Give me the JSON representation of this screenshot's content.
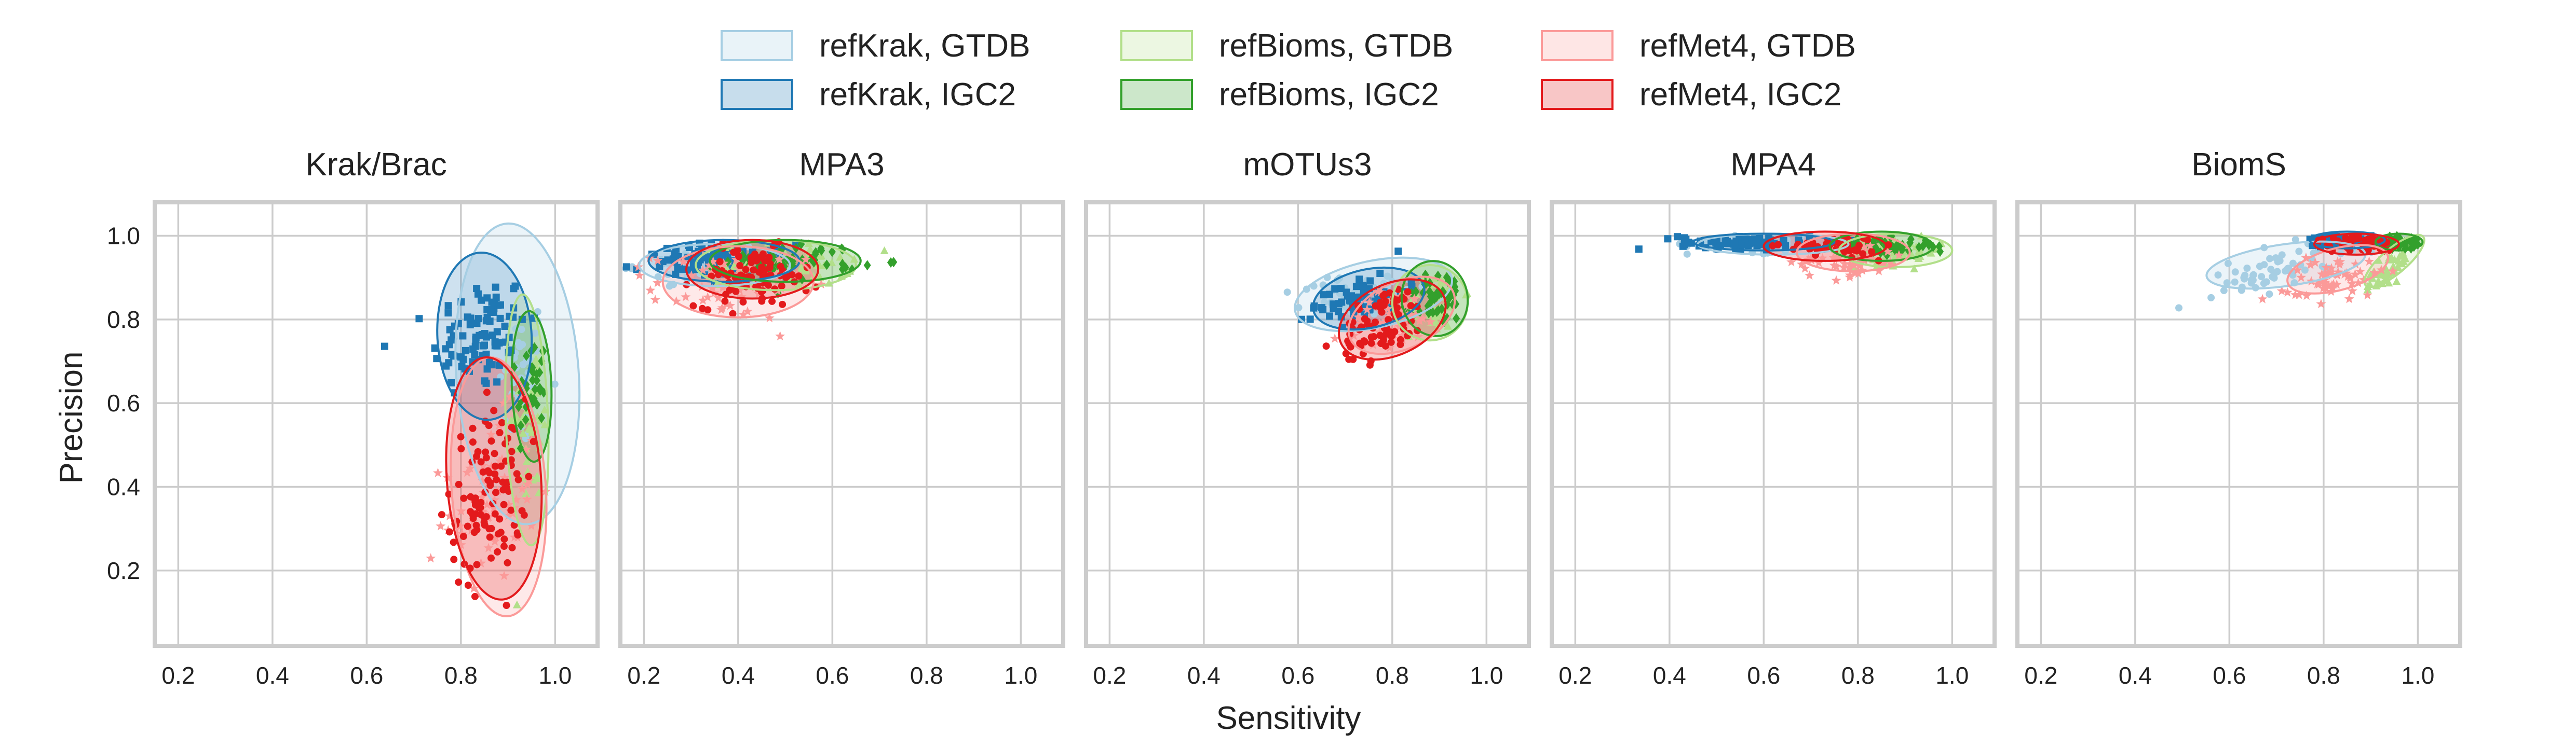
{
  "figure": {
    "xlabel": "Sensitivity",
    "ylabel": "Precision"
  },
  "legend": {
    "placement": "top-center",
    "entries": [
      {
        "label": "refKrak, GTDB",
        "color": "#a6cee3"
      },
      {
        "label": "refKrak, IGC2",
        "color": "#1f78b4"
      },
      {
        "label": "refBioms, GTDB",
        "color": "#b2df8a"
      },
      {
        "label": "refBioms, IGC2",
        "color": "#33a02c"
      },
      {
        "label": "refMet4, GTDB",
        "color": "#fb9a99"
      },
      {
        "label": "refMet4, IGC2",
        "color": "#e31a1c"
      }
    ]
  },
  "colors": {
    "refKrak_GTDB": "#a6cee3",
    "refKrak_IGC2": "#1f78b4",
    "refBioms_GTDB": "#b2df8a",
    "refBioms_IGC2": "#33a02c",
    "refMet4_GTDB": "#fb9a99",
    "refMet4_IGC2": "#e31a1c",
    "grid": "#cccccc",
    "frame": "#cccccc"
  },
  "chart_data": [
    {
      "type": "scatter",
      "title": "Krak/Brac",
      "xlim": [
        0.15,
        1.09
      ],
      "ylim": [
        0.02,
        1.08
      ],
      "xticks": [
        "0.2",
        "0.4",
        "0.6",
        "0.8",
        "1.0"
      ],
      "yticks": [
        "0.2",
        "0.4",
        "0.6",
        "0.8",
        "1.0"
      ],
      "grid": true,
      "series": [
        {
          "name": "refKrak, GTDB",
          "marker": "circle",
          "cloud": {
            "cx": 0.93,
            "cy": 0.66,
            "sx": 0.025,
            "sy": 0.09,
            "rho": 0.2,
            "n": 40
          },
          "ellipse": {
            "cx": 0.92,
            "cy": 0.67,
            "rx": 0.13,
            "ry": 0.36,
            "angle": -4
          }
        },
        {
          "name": "refKrak, IGC2",
          "marker": "square",
          "cloud": {
            "cx": 0.84,
            "cy": 0.76,
            "sx": 0.05,
            "sy": 0.07,
            "rho": 0.2,
            "n": 90
          },
          "ellipse": {
            "cx": 0.85,
            "cy": 0.76,
            "rx": 0.1,
            "ry": 0.2,
            "angle": -3
          }
        },
        {
          "name": "refBioms, GTDB",
          "marker": "triangle",
          "cloud": {
            "cx": 0.95,
            "cy": 0.55,
            "sx": 0.02,
            "sy": 0.1,
            "rho": 0.1,
            "n": 50
          },
          "ellipse": {
            "cx": 0.94,
            "cy": 0.56,
            "rx": 0.045,
            "ry": 0.3,
            "angle": -2
          }
        },
        {
          "name": "refBioms, IGC2",
          "marker": "diamond",
          "cloud": {
            "cx": 0.95,
            "cy": 0.64,
            "sx": 0.015,
            "sy": 0.06,
            "rho": 0.1,
            "n": 40
          },
          "ellipse": {
            "cx": 0.95,
            "cy": 0.64,
            "rx": 0.042,
            "ry": 0.18,
            "angle": -2
          }
        },
        {
          "name": "refMet4, GTDB",
          "marker": "star",
          "cloud": {
            "cx": 0.86,
            "cy": 0.36,
            "sx": 0.05,
            "sy": 0.1,
            "rho": 0.2,
            "n": 60
          },
          "ellipse": {
            "cx": 0.88,
            "cy": 0.4,
            "rx": 0.1,
            "ry": 0.31,
            "angle": -4
          }
        },
        {
          "name": "refMet4, IGC2",
          "marker": "circle",
          "cloud": {
            "cx": 0.86,
            "cy": 0.38,
            "sx": 0.04,
            "sy": 0.1,
            "rho": 0.2,
            "n": 110
          },
          "ellipse": {
            "cx": 0.87,
            "cy": 0.42,
            "rx": 0.1,
            "ry": 0.29,
            "angle": -4
          }
        }
      ]
    },
    {
      "type": "scatter",
      "title": "MPA3",
      "xlim": [
        0.15,
        1.09
      ],
      "ylim": [
        0.02,
        1.08
      ],
      "xticks": [
        "0.2",
        "0.4",
        "0.6",
        "0.8",
        "1.0"
      ],
      "yticks": [
        "0.2",
        "0.4",
        "0.6",
        "0.8",
        "1.0"
      ],
      "grid": true,
      "series": [
        {
          "name": "refKrak, GTDB",
          "marker": "circle",
          "cloud": {
            "cx": 0.32,
            "cy": 0.93,
            "sx": 0.07,
            "sy": 0.02,
            "rho": 0.0,
            "n": 50
          },
          "ellipse": {
            "cx": 0.35,
            "cy": 0.93,
            "rx": 0.16,
            "ry": 0.05,
            "angle": 0
          }
        },
        {
          "name": "refKrak, IGC2",
          "marker": "square",
          "cloud": {
            "cx": 0.35,
            "cy": 0.94,
            "sx": 0.08,
            "sy": 0.02,
            "rho": 0.0,
            "n": 80
          },
          "ellipse": {
            "cx": 0.37,
            "cy": 0.94,
            "rx": 0.16,
            "ry": 0.05,
            "angle": 0
          }
        },
        {
          "name": "refBioms, GTDB",
          "marker": "triangle",
          "cloud": {
            "cx": 0.5,
            "cy": 0.93,
            "sx": 0.07,
            "sy": 0.025,
            "rho": 0.0,
            "n": 60
          },
          "ellipse": {
            "cx": 0.48,
            "cy": 0.93,
            "rx": 0.17,
            "ry": 0.06,
            "angle": 0
          }
        },
        {
          "name": "refBioms, IGC2",
          "marker": "diamond",
          "cloud": {
            "cx": 0.52,
            "cy": 0.94,
            "sx": 0.07,
            "sy": 0.02,
            "rho": 0.0,
            "n": 60
          },
          "ellipse": {
            "cx": 0.5,
            "cy": 0.94,
            "rx": 0.16,
            "ry": 0.05,
            "angle": 0
          }
        },
        {
          "name": "refMet4, GTDB",
          "marker": "star",
          "cloud": {
            "cx": 0.38,
            "cy": 0.88,
            "sx": 0.08,
            "sy": 0.04,
            "rho": 0.0,
            "n": 70
          },
          "ellipse": {
            "cx": 0.4,
            "cy": 0.89,
            "rx": 0.16,
            "ry": 0.085,
            "angle": 0
          }
        },
        {
          "name": "refMet4, IGC2",
          "marker": "circle",
          "cloud": {
            "cx": 0.43,
            "cy": 0.9,
            "sx": 0.06,
            "sy": 0.035,
            "rho": 0.0,
            "n": 90
          },
          "ellipse": {
            "cx": 0.43,
            "cy": 0.92,
            "rx": 0.14,
            "ry": 0.07,
            "angle": 0
          }
        }
      ]
    },
    {
      "type": "scatter",
      "title": "mOTUs3",
      "xlim": [
        0.15,
        1.09
      ],
      "ylim": [
        0.02,
        1.08
      ],
      "xticks": [
        "0.2",
        "0.4",
        "0.6",
        "0.8",
        "1.0"
      ],
      "yticks": [
        "0.2",
        "0.4",
        "0.6",
        "0.8",
        "1.0"
      ],
      "grid": true,
      "series": [
        {
          "name": "refKrak, GTDB",
          "marker": "circle",
          "cloud": {
            "cx": 0.73,
            "cy": 0.86,
            "sx": 0.06,
            "sy": 0.03,
            "rho": 0.3,
            "n": 60
          },
          "ellipse": {
            "cx": 0.76,
            "cy": 0.86,
            "rx": 0.17,
            "ry": 0.08,
            "angle": -12
          }
        },
        {
          "name": "refKrak, IGC2",
          "marker": "square",
          "cloud": {
            "cx": 0.73,
            "cy": 0.85,
            "sx": 0.05,
            "sy": 0.03,
            "rho": 0.3,
            "n": 60
          },
          "ellipse": {
            "cx": 0.75,
            "cy": 0.85,
            "rx": 0.12,
            "ry": 0.07,
            "angle": -12
          }
        },
        {
          "name": "refBioms, GTDB",
          "marker": "triangle",
          "cloud": {
            "cx": 0.89,
            "cy": 0.84,
            "sx": 0.03,
            "sy": 0.04,
            "rho": 0.3,
            "n": 50
          },
          "ellipse": {
            "cx": 0.88,
            "cy": 0.84,
            "rx": 0.08,
            "ry": 0.09,
            "angle": -10
          }
        },
        {
          "name": "refBioms, IGC2",
          "marker": "diamond",
          "cloud": {
            "cx": 0.9,
            "cy": 0.85,
            "sx": 0.025,
            "sy": 0.035,
            "rho": 0.3,
            "n": 50
          },
          "ellipse": {
            "cx": 0.89,
            "cy": 0.85,
            "rx": 0.07,
            "ry": 0.09,
            "angle": -10
          }
        },
        {
          "name": "refMet4, GTDB",
          "marker": "star",
          "cloud": {
            "cx": 0.8,
            "cy": 0.8,
            "sx": 0.05,
            "sy": 0.04,
            "rho": 0.4,
            "n": 60
          },
          "ellipse": {
            "cx": 0.82,
            "cy": 0.81,
            "rx": 0.12,
            "ry": 0.08,
            "angle": -25
          }
        },
        {
          "name": "refMet4, IGC2",
          "marker": "circle",
          "cloud": {
            "cx": 0.78,
            "cy": 0.79,
            "sx": 0.045,
            "sy": 0.045,
            "rho": 0.4,
            "n": 80
          },
          "ellipse": {
            "cx": 0.8,
            "cy": 0.8,
            "rx": 0.12,
            "ry": 0.085,
            "angle": -25
          }
        }
      ]
    },
    {
      "type": "scatter",
      "title": "MPA4",
      "xlim": [
        0.15,
        1.09
      ],
      "ylim": [
        0.02,
        1.08
      ],
      "xticks": [
        "0.2",
        "0.4",
        "0.6",
        "0.8",
        "1.0"
      ],
      "yticks": [
        "0.2",
        "0.4",
        "0.6",
        "0.8",
        "1.0"
      ],
      "grid": true,
      "series": [
        {
          "name": "refKrak, GTDB",
          "marker": "circle",
          "cloud": {
            "cx": 0.58,
            "cy": 0.98,
            "sx": 0.07,
            "sy": 0.01,
            "rho": 0.0,
            "n": 40
          },
          "ellipse": {
            "cx": 0.62,
            "cy": 0.98,
            "rx": 0.16,
            "ry": 0.025,
            "angle": 0
          }
        },
        {
          "name": "refKrak, IGC2",
          "marker": "square",
          "cloud": {
            "cx": 0.56,
            "cy": 0.985,
            "sx": 0.07,
            "sy": 0.008,
            "rho": 0.0,
            "n": 70
          },
          "ellipse": {
            "cx": 0.6,
            "cy": 0.985,
            "rx": 0.15,
            "ry": 0.02,
            "angle": 0
          }
        },
        {
          "name": "refBioms, GTDB",
          "marker": "triangle",
          "cloud": {
            "cx": 0.88,
            "cy": 0.96,
            "sx": 0.05,
            "sy": 0.015,
            "rho": 0.0,
            "n": 60
          },
          "ellipse": {
            "cx": 0.88,
            "cy": 0.965,
            "rx": 0.12,
            "ry": 0.04,
            "angle": 0
          }
        },
        {
          "name": "refBioms, IGC2",
          "marker": "diamond",
          "cloud": {
            "cx": 0.86,
            "cy": 0.975,
            "sx": 0.05,
            "sy": 0.01,
            "rho": 0.0,
            "n": 60
          },
          "ellipse": {
            "cx": 0.85,
            "cy": 0.975,
            "rx": 0.11,
            "ry": 0.035,
            "angle": 0
          }
        },
        {
          "name": "refMet4, GTDB",
          "marker": "star",
          "cloud": {
            "cx": 0.78,
            "cy": 0.94,
            "sx": 0.06,
            "sy": 0.02,
            "rho": 0.0,
            "n": 60
          },
          "ellipse": {
            "cx": 0.79,
            "cy": 0.96,
            "rx": 0.12,
            "ry": 0.045,
            "angle": 0
          }
        },
        {
          "name": "refMet4, IGC2",
          "marker": "circle",
          "cloud": {
            "cx": 0.74,
            "cy": 0.975,
            "sx": 0.05,
            "sy": 0.012,
            "rho": 0.0,
            "n": 50
          },
          "ellipse": {
            "cx": 0.73,
            "cy": 0.975,
            "rx": 0.13,
            "ry": 0.035,
            "angle": 0
          }
        }
      ]
    },
    {
      "type": "scatter",
      "title": "BiomS",
      "xlim": [
        0.15,
        1.09
      ],
      "ylim": [
        0.02,
        1.08
      ],
      "xticks": [
        "0.2",
        "0.4",
        "0.6",
        "0.8",
        "1.0"
      ],
      "yticks": [
        "0.2",
        "0.4",
        "0.6",
        "0.8",
        "1.0"
      ],
      "grid": true,
      "series": [
        {
          "name": "refKrak, GTDB",
          "marker": "circle",
          "cloud": {
            "cx": 0.7,
            "cy": 0.92,
            "sx": 0.07,
            "sy": 0.03,
            "rho": 0.5,
            "n": 60
          },
          "ellipse": {
            "cx": 0.72,
            "cy": 0.93,
            "rx": 0.17,
            "ry": 0.05,
            "angle": -8
          }
        },
        {
          "name": "refKrak, IGC2",
          "marker": "square",
          "cloud": {
            "cx": 0.84,
            "cy": 0.99,
            "sx": 0.04,
            "sy": 0.006,
            "rho": 0.0,
            "n": 50
          },
          "ellipse": {
            "cx": 0.85,
            "cy": 0.99,
            "rx": 0.08,
            "ry": 0.02,
            "angle": 0
          }
        },
        {
          "name": "refBioms, GTDB",
          "marker": "triangle",
          "cloud": {
            "cx": 0.94,
            "cy": 0.92,
            "sx": 0.025,
            "sy": 0.03,
            "rho": 0.8,
            "n": 50
          },
          "ellipse": {
            "cx": 0.95,
            "cy": 0.94,
            "rx": 0.08,
            "ry": 0.03,
            "angle": -40
          }
        },
        {
          "name": "refBioms, IGC2",
          "marker": "diamond",
          "cloud": {
            "cx": 0.96,
            "cy": 0.985,
            "sx": 0.02,
            "sy": 0.008,
            "rho": 0.0,
            "n": 40
          },
          "ellipse": {
            "cx": 0.96,
            "cy": 0.985,
            "rx": 0.05,
            "ry": 0.02,
            "angle": 0
          }
        },
        {
          "name": "refMet4, GTDB",
          "marker": "star",
          "cloud": {
            "cx": 0.82,
            "cy": 0.9,
            "sx": 0.05,
            "sy": 0.03,
            "rho": 0.5,
            "n": 60
          },
          "ellipse": {
            "cx": 0.83,
            "cy": 0.92,
            "rx": 0.11,
            "ry": 0.05,
            "angle": -15
          }
        },
        {
          "name": "refMet4, IGC2",
          "marker": "circle",
          "cloud": {
            "cx": 0.87,
            "cy": 0.98,
            "sx": 0.04,
            "sy": 0.01,
            "rho": 0.0,
            "n": 50
          },
          "ellipse": {
            "cx": 0.87,
            "cy": 0.98,
            "rx": 0.09,
            "ry": 0.025,
            "angle": 0
          }
        }
      ]
    }
  ]
}
